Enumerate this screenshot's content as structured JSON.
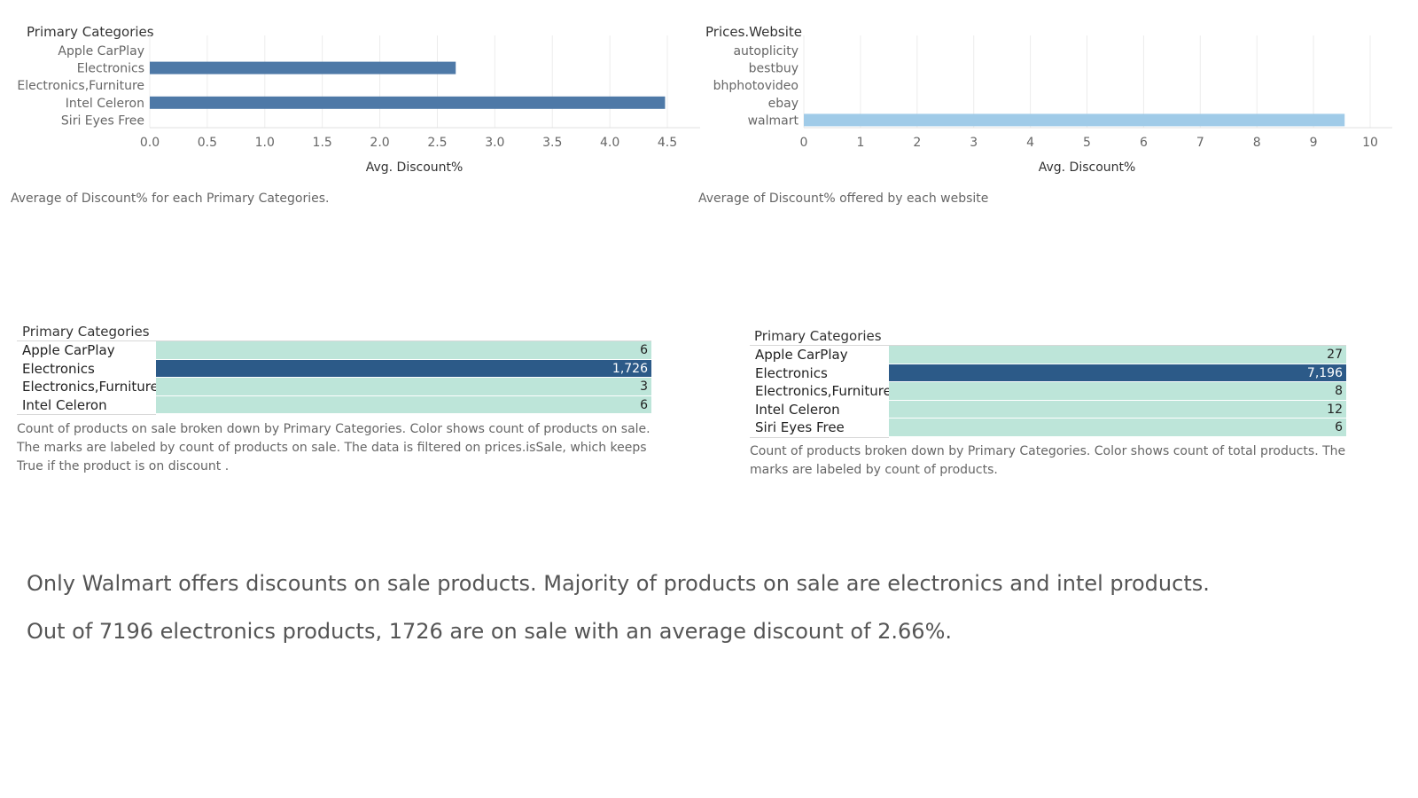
{
  "chart_data": [
    {
      "type": "bar",
      "orientation": "horizontal",
      "row_header": "Primary Categories",
      "categories": [
        "Apple CarPlay",
        "Electronics",
        "Electronics,Furniture",
        "Intel Celeron",
        "Siri Eyes Free"
      ],
      "values": [
        0,
        2.66,
        0,
        4.48,
        0
      ],
      "xlabel": "Avg. Discount%",
      "xlim": [
        0,
        4.6
      ],
      "ticks": [
        "0.0",
        "0.5",
        "1.0",
        "1.5",
        "2.0",
        "2.5",
        "3.0",
        "3.5",
        "4.0",
        "4.5"
      ],
      "tick_values": [
        0,
        0.5,
        1,
        1.5,
        2,
        2.5,
        3,
        3.5,
        4,
        4.5
      ],
      "color": "#4e79a7",
      "grid": true,
      "caption": "Average of Discount% for each Primary Categories."
    },
    {
      "type": "bar",
      "orientation": "horizontal",
      "row_header": "Prices.Website",
      "categories": [
        "autoplicity",
        "bestbuy",
        "bhphotovideo",
        "ebay",
        "walmart"
      ],
      "values": [
        0,
        0,
        0,
        0,
        9.55
      ],
      "xlabel": "Avg. Discount%",
      "xlim": [
        0,
        10
      ],
      "ticks": [
        "0",
        "1",
        "2",
        "3",
        "4",
        "5",
        "6",
        "7",
        "8",
        "9",
        "10"
      ],
      "tick_values": [
        0,
        1,
        2,
        3,
        4,
        5,
        6,
        7,
        8,
        9,
        10
      ],
      "color": "#a0cbe8",
      "grid": true,
      "caption": "Average of Discount% offered by each website"
    },
    {
      "type": "table",
      "row_header": "Primary Categories",
      "rows": [
        {
          "label": "Apple CarPlay",
          "value": "6",
          "highlight": false
        },
        {
          "label": "Electronics",
          "value": "1,726",
          "highlight": true
        },
        {
          "label": "Electronics,Furniture",
          "value": "3",
          "highlight": false
        },
        {
          "label": "Intel Celeron",
          "value": "6",
          "highlight": false
        }
      ],
      "low_color": "#bde5d9",
      "high_color": "#2c5a88",
      "caption": "Count of products on sale broken down by Primary Categories.  Color shows count of products on sale. The marks are labeled by count of products on sale. The data is filtered on prices.isSale, which keeps True if the product is on discount ."
    },
    {
      "type": "table",
      "row_header": "Primary Categories",
      "rows": [
        {
          "label": "Apple CarPlay",
          "value": "27",
          "highlight": false
        },
        {
          "label": "Electronics",
          "value": "7,196",
          "highlight": true
        },
        {
          "label": "Electronics,Furniture",
          "value": "8",
          "highlight": false
        },
        {
          "label": "Intel Celeron",
          "value": "12",
          "highlight": false
        },
        {
          "label": "Siri Eyes Free",
          "value": "6",
          "highlight": false
        }
      ],
      "low_color": "#bde5d9",
      "high_color": "#2c5a88",
      "caption": "Count of products broken down by Primary Categories.  Color shows count of total products. The marks are labeled by count of products."
    }
  ],
  "insights": {
    "line1": "Only Walmart offers discounts on sale products. Majority of products on sale are electronics and intel products.",
    "line2": "Out of 7196 electronics products, 1726 are on sale with an average discount of 2.66%."
  }
}
